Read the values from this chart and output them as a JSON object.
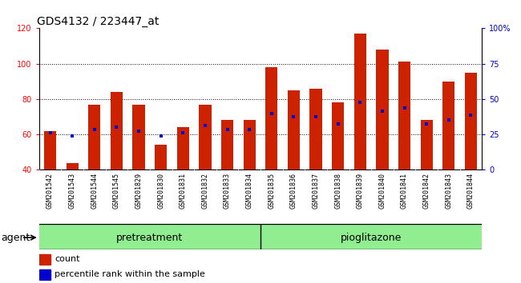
{
  "title": "GDS4132 / 223447_at",
  "samples": [
    "GSM201542",
    "GSM201543",
    "GSM201544",
    "GSM201545",
    "GSM201829",
    "GSM201830",
    "GSM201831",
    "GSM201832",
    "GSM201833",
    "GSM201834",
    "GSM201835",
    "GSM201836",
    "GSM201837",
    "GSM201838",
    "GSM201839",
    "GSM201840",
    "GSM201841",
    "GSM201842",
    "GSM201843",
    "GSM201844"
  ],
  "bar_heights": [
    62,
    44,
    77,
    84,
    77,
    54,
    64,
    77,
    68,
    68,
    98,
    85,
    86,
    78,
    117,
    108,
    101,
    68,
    90,
    95
  ],
  "blue_values_left": [
    61,
    59,
    63,
    64,
    62,
    59,
    61,
    65,
    63,
    63,
    72,
    70,
    70,
    66,
    78,
    73,
    75,
    66,
    68,
    71
  ],
  "pretreatment_count": 10,
  "ylim_left": [
    40,
    120
  ],
  "ylim_right": [
    0,
    100
  ],
  "bar_color": "#cc2200",
  "blue_color": "#0000cc",
  "xtick_bg_color": "#c8c8c8",
  "group_bg_color": "#90ee90",
  "plot_bg_color": "#ffffff",
  "fig_bg_color": "#ffffff",
  "title_fontsize": 10,
  "tick_fontsize": 7,
  "label_fontsize": 8,
  "group_fontsize": 9,
  "agent_label": "agent",
  "pretreatment_label": "pretreatment",
  "pioglitazone_label": "pioglitazone",
  "legend_count": "count",
  "legend_percentile": "percentile rank within the sample",
  "dotted_lines": [
    60,
    80,
    100
  ],
  "bar_width": 0.55
}
